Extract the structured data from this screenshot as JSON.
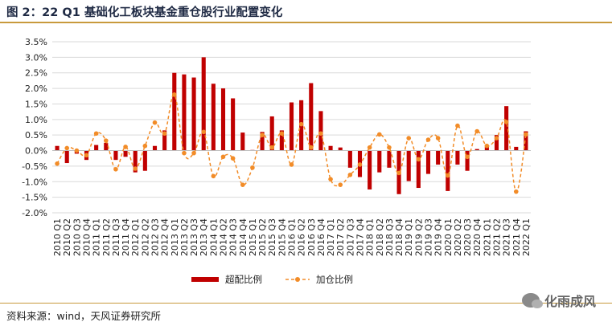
{
  "title": "图 2：22 Q1 基础化工板块基金重仓股行业配置变化",
  "source": "资料来源：wind，天风证券研究所",
  "watermark": "化雨成风",
  "watermark_icon": "wechat-icon",
  "colors": {
    "bar": "#c00000",
    "line": "#f28c28",
    "grid": "#d9d9d9",
    "rule": "#c89a3c"
  },
  "chart_data": {
    "type": "bar+line",
    "categories": [
      "2010 Q1",
      "2010 Q2",
      "2010 Q3",
      "2010 Q4",
      "2011 Q1",
      "2011 Q2",
      "2011 Q3",
      "2011 Q4",
      "2012 Q1",
      "2012 Q2",
      "2012 Q3",
      "2012 Q4",
      "2013 Q1",
      "2013 Q2",
      "2013 Q3",
      "2013 Q4",
      "2014 Q1",
      "2014 Q2",
      "2014 Q3",
      "2014 Q4",
      "2015 Q1",
      "2015 Q2",
      "2015 Q3",
      "2015 Q4",
      "2016 Q1",
      "2016 Q2",
      "2016 Q3",
      "2016 Q4",
      "2017 Q1",
      "2017 Q2",
      "2017 Q3",
      "2017 Q4",
      "2018 Q1",
      "2018 Q2",
      "2018 Q3",
      "2018 Q4",
      "2019 Q1",
      "2019 Q2",
      "2019 Q3",
      "2019 Q4",
      "2020 Q1",
      "2020 Q2",
      "2020 Q3",
      "2020 Q4",
      "2021 Q1",
      "2021 Q2",
      "2021 Q3",
      "2021 Q4",
      "2022 Q1"
    ],
    "series": [
      {
        "name": "超配比例",
        "type": "bar",
        "values": [
          0.15,
          -0.4,
          -0.1,
          -0.3,
          0.18,
          0.25,
          -0.3,
          -0.2,
          -0.7,
          -0.65,
          0.15,
          0.65,
          2.5,
          2.45,
          2.35,
          3.0,
          2.15,
          2.0,
          1.68,
          0.58,
          0.02,
          0.6,
          1.1,
          0.65,
          1.55,
          1.62,
          2.17,
          1.27,
          0.15,
          0.1,
          -0.55,
          -0.85,
          -1.25,
          -0.7,
          -0.55,
          -1.4,
          -0.98,
          -1.2,
          -0.75,
          -0.45,
          -1.3,
          -0.45,
          -0.65,
          0.05,
          0.12,
          0.5,
          1.43,
          0.12,
          0.62
        ]
      },
      {
        "name": "加仓比例",
        "type": "line",
        "values": [
          -0.42,
          0.08,
          0.0,
          -0.15,
          0.55,
          0.32,
          -0.6,
          0.12,
          -0.58,
          0.15,
          0.9,
          0.55,
          1.8,
          -0.08,
          -0.08,
          0.6,
          -0.82,
          -0.2,
          -0.25,
          -1.1,
          -0.55,
          0.5,
          0.1,
          0.55,
          -0.45,
          0.85,
          0.1,
          0.55,
          -0.92,
          -1.1,
          -0.78,
          -0.45,
          0.1,
          0.52,
          0.1,
          -0.72,
          0.4,
          -0.28,
          0.35,
          0.4,
          -0.8,
          0.8,
          -0.2,
          0.62,
          0.15,
          0.4,
          0.92,
          -1.32,
          0.52
        ]
      }
    ],
    "y_ticks": [
      "3.5%",
      "3.0%",
      "2.5%",
      "2.0%",
      "1.5%",
      "1.0%",
      "0.5%",
      "0.0%",
      "-0.5%",
      "-1.0%",
      "-1.5%",
      "-2.0%"
    ],
    "ylim": [
      -2.0,
      3.5
    ],
    "grid": true,
    "legend_position": "bottom"
  }
}
